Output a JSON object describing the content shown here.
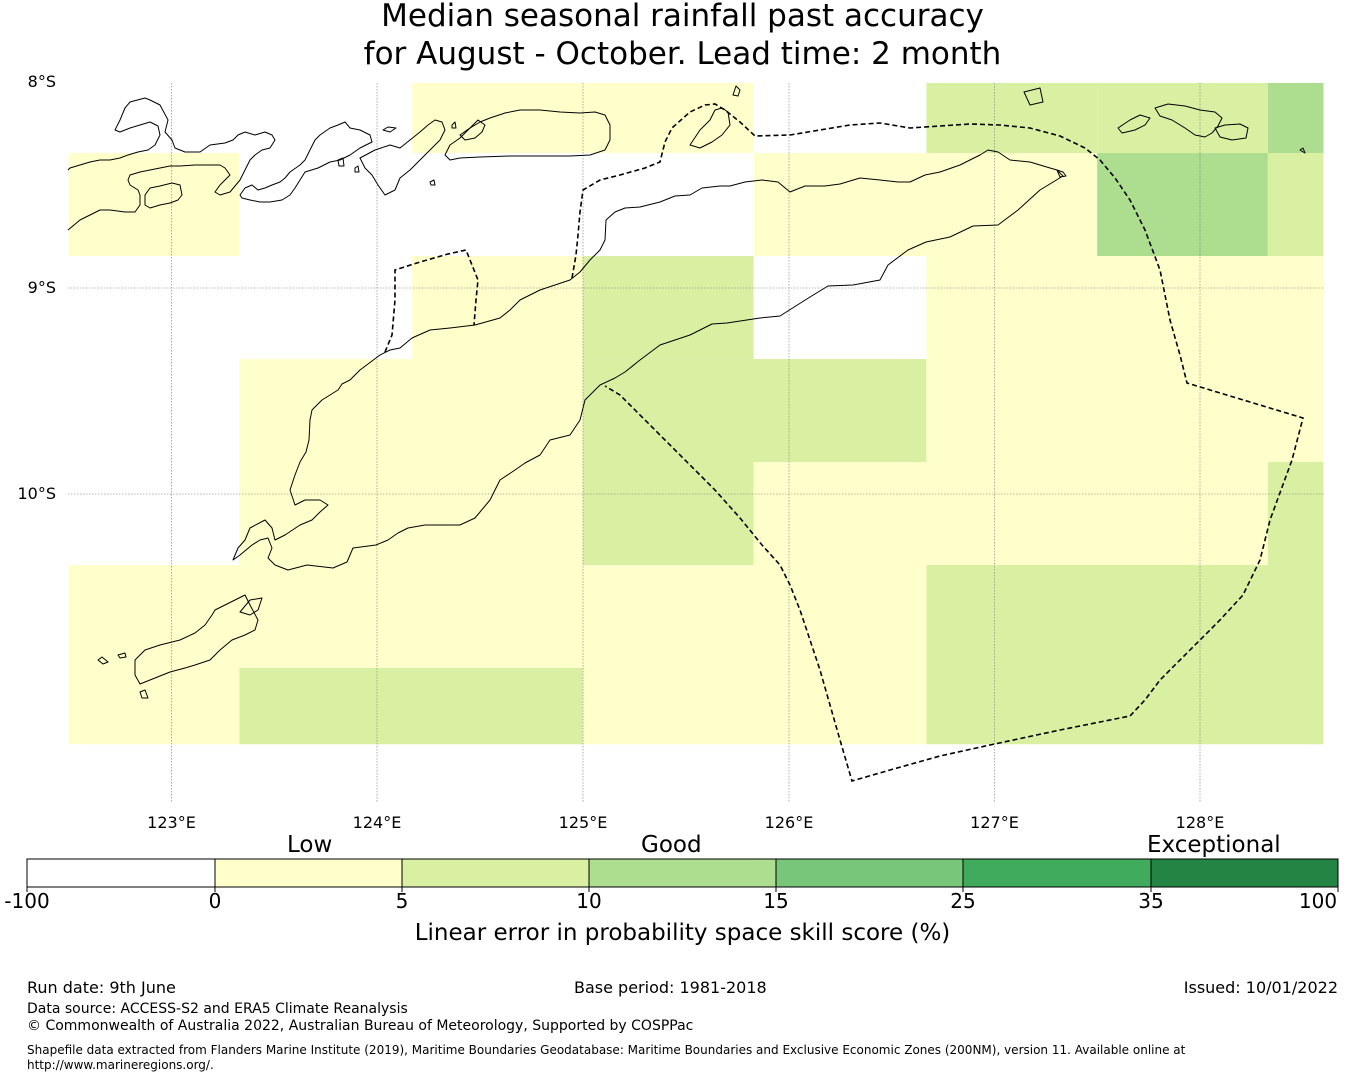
{
  "title_line1": "Median seasonal rainfall past accuracy",
  "title_line2": "for August - October. Lead time: 2 month",
  "map": {
    "lat_labels": [
      "8°S",
      "9°S",
      "10°S"
    ],
    "lon_labels": [
      "123°E",
      "124°E",
      "125°E",
      "126°E",
      "127°E",
      "128°E"
    ],
    "lon_range": [
      122.5,
      128.6
    ],
    "lat_range": [
      -10.5,
      -7.99
    ],
    "colors": {
      "band_minus100_0": "#ffffff",
      "band_0_5": "#ffffcc",
      "band_5_10": "#d9f0a3",
      "band_10_15": "#addd8e",
      "band_15_25": "#78c679",
      "band_25_35": "#41ab5d",
      "band_35_100": "#238443",
      "coastline": "#000000",
      "eez_boundary": "#000000"
    },
    "grid_cells": [
      {
        "lon": [
          122.5,
          123.33
        ],
        "lat": [
          -8.33,
          -8.83
        ],
        "skill_band": "0-5"
      },
      {
        "lon": [
          124.17,
          125.83
        ],
        "lat": [
          -7.99,
          -8.33
        ],
        "skill_band": "0-5"
      },
      {
        "lon": [
          125.83,
          126.67
        ],
        "lat": [
          -8.33,
          -8.83
        ],
        "skill_band": "0-5"
      },
      {
        "lon": [
          126.67,
          127.5
        ],
        "lat": [
          -7.99,
          -8.33
        ],
        "skill_band": "5-10"
      },
      {
        "lon": [
          127.5,
          128.33
        ],
        "lat": [
          -7.99,
          -8.33
        ],
        "skill_band": "5-10"
      },
      {
        "lon": [
          128.33,
          128.6
        ],
        "lat": [
          -7.99,
          -8.33
        ],
        "skill_band": "10-15"
      },
      {
        "lon": [
          126.67,
          127.5
        ],
        "lat": [
          -8.33,
          -8.83
        ],
        "skill_band": "0-5"
      },
      {
        "lon": [
          127.5,
          128.33
        ],
        "lat": [
          -8.33,
          -8.83
        ],
        "skill_band": "10-15"
      },
      {
        "lon": [
          128.33,
          128.6
        ],
        "lat": [
          -8.33,
          -8.83
        ],
        "skill_band": "5-10"
      },
      {
        "lon": [
          124.17,
          125.0
        ],
        "lat": [
          -8.83,
          -9.33
        ],
        "skill_band": "0-5"
      },
      {
        "lon": [
          125.0,
          125.83
        ],
        "lat": [
          -8.83,
          -9.33
        ],
        "skill_band": "5-10"
      },
      {
        "lon": [
          126.67,
          128.6
        ],
        "lat": [
          -8.83,
          -9.33
        ],
        "skill_band": "0-5"
      },
      {
        "lon": [
          123.33,
          125.0
        ],
        "lat": [
          -9.33,
          -9.83
        ],
        "skill_band": "0-5"
      },
      {
        "lon": [
          125.0,
          126.67
        ],
        "lat": [
          -9.33,
          -9.83
        ],
        "skill_band": "5-10"
      },
      {
        "lon": [
          126.67,
          128.6
        ],
        "lat": [
          -9.33,
          -9.83
        ],
        "skill_band": "0-5"
      },
      {
        "lon": [
          123.33,
          125.0
        ],
        "lat": [
          -9.83,
          -10.33
        ],
        "skill_band": "0-5"
      },
      {
        "lon": [
          125.0,
          125.83
        ],
        "lat": [
          -9.83,
          -10.33
        ],
        "skill_band": "5-10"
      },
      {
        "lon": [
          125.83,
          128.33
        ],
        "lat": [
          -9.83,
          -10.33
        ],
        "skill_band": "0-5"
      },
      {
        "lon": [
          128.33,
          128.6
        ],
        "lat": [
          -9.83,
          -10.33
        ],
        "skill_band": "5-10"
      },
      {
        "lon": [
          122.5,
          126.67
        ],
        "lat": [
          -10.33,
          -10.83
        ],
        "skill_band": "0-5"
      },
      {
        "lon": [
          126.67,
          128.6
        ],
        "lat": [
          -10.33,
          -10.83
        ],
        "skill_band": "5-10"
      },
      {
        "lon": [
          122.5,
          123.33
        ],
        "lat": [
          -10.83,
          -11.2
        ],
        "skill_band": "0-5"
      },
      {
        "lon": [
          123.33,
          125.0
        ],
        "lat": [
          -10.83,
          -11.2
        ],
        "skill_band": "5-10"
      },
      {
        "lon": [
          125.0,
          126.67
        ],
        "lat": [
          -10.83,
          -11.2
        ],
        "skill_band": "0-5"
      },
      {
        "lon": [
          126.67,
          128.6
        ],
        "lat": [
          -10.83,
          -11.2
        ],
        "skill_band": "5-10"
      }
    ]
  },
  "colorbar": {
    "category_labels": [
      "Low",
      "Good",
      "Exceptional"
    ],
    "tick_labels": [
      "-100",
      "0",
      "5",
      "10",
      "15",
      "25",
      "35",
      "100"
    ],
    "axis_label": "Linear error in probability space skill score (%)"
  },
  "footer": {
    "run_date": "Run date: 9th June",
    "base_period": "Base period: 1981-2018",
    "issued": "Issued: 10/01/2022",
    "data_source": "Data source: ACCESS-S2 and ERA5 Climate Reanalysis",
    "copyright": "© Commonwealth of Australia 2022, Australian Bureau of Meteorology, Supported by COSPPac",
    "shapefile_line1": "Shapefile data extracted from Flanders Marine Institute (2019), Maritime Boundaries Geodatabase: Maritime Boundaries and Exclusive Economic Zones (200NM), version 11. Available online at",
    "shapefile_line2": "http://www.marineregions.org/."
  }
}
